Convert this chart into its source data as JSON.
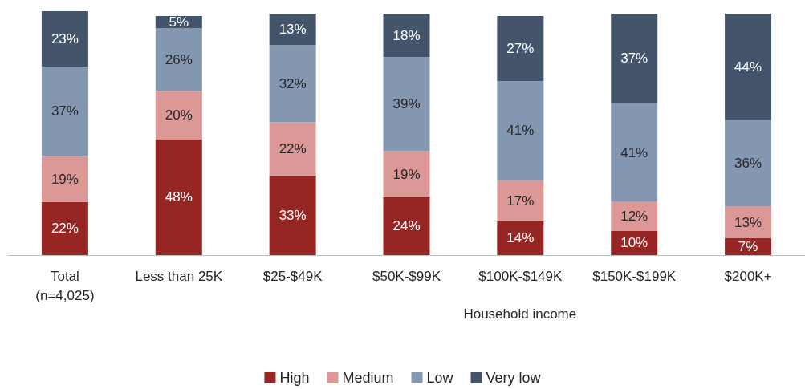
{
  "chart_data": {
    "type": "bar",
    "stacked": true,
    "xlabel": "Household income",
    "categories": [
      "Total\n(n=4,025)",
      "Less than 25K",
      "$25-$49K",
      "$50K-$99K",
      "$100K-$149K",
      "$150K-$199K",
      "$200K+"
    ],
    "series": [
      {
        "name": "High",
        "color": "#962623",
        "values": [
          22,
          48,
          33,
          24,
          14,
          10,
          7
        ],
        "value_labels": [
          "22%",
          "48%",
          "33%",
          "24%",
          "14%",
          "10%",
          "7%"
        ]
      },
      {
        "name": "Medium",
        "color": "#dc9896",
        "values": [
          19,
          20,
          22,
          19,
          17,
          12,
          13
        ],
        "value_labels": [
          "19%",
          "20%",
          "22%",
          "19%",
          "17%",
          "12%",
          "13%"
        ]
      },
      {
        "name": "Low",
        "color": "#8497b0",
        "values": [
          37,
          26,
          32,
          39,
          41,
          41,
          36
        ],
        "value_labels": [
          "37%",
          "26%",
          "32%",
          "39%",
          "41%",
          "41%",
          "36%"
        ]
      },
      {
        "name": "Very low",
        "color": "#44546a",
        "values": [
          23,
          5,
          13,
          18,
          27,
          37,
          44
        ],
        "value_labels": [
          "23%",
          "5%",
          "13%",
          "18%",
          "27%",
          "37%",
          "44%"
        ]
      }
    ],
    "legend": "bottom",
    "grid": false
  }
}
